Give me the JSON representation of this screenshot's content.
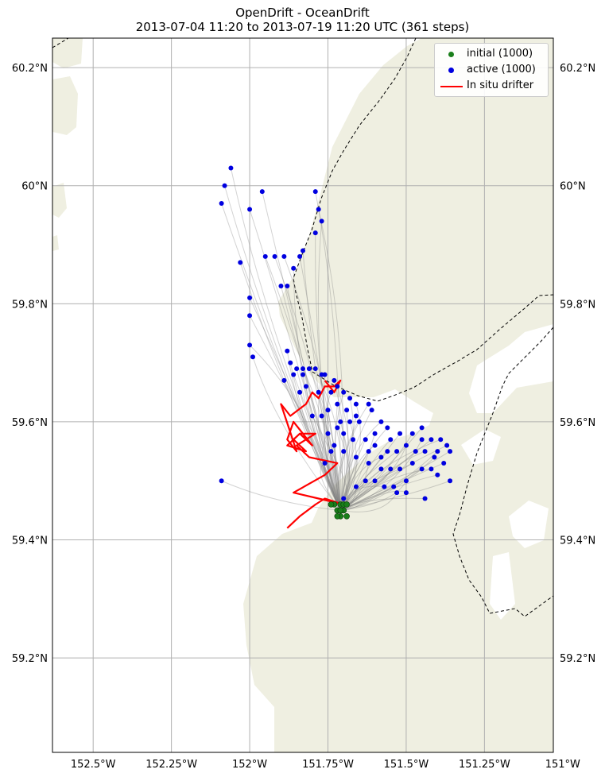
{
  "title_line1": "OpenDrift - OceanDrift",
  "title_line2": "2013-07-04 11:20 to 2013-07-19 11:20 UTC (361 steps)",
  "colors": {
    "land": "#efefe1",
    "grid": "#b0b0b0",
    "trajectory": "#808080",
    "initial": "#1a7f1a",
    "active": "#0000e0",
    "drifter": "#ff0000",
    "border": "#000000"
  },
  "map": {
    "lon_range": [
      -152.63,
      -151.03
    ],
    "lat_range": [
      59.04,
      60.25
    ],
    "lon_ticks": [
      "152.5°W",
      "152.25°W",
      "152°W",
      "151.75°W",
      "151.5°W",
      "151.25°W",
      "151°W"
    ],
    "lat_ticks": [
      "60.2°N",
      "60°N",
      "59.8°N",
      "59.6°N",
      "59.4°N",
      "59.2°N"
    ]
  },
  "legend": {
    "position": "top-right",
    "items": [
      {
        "label": "initial (1000)",
        "symbol": "dot",
        "color": "#1a7f1a"
      },
      {
        "label": "active (1000)",
        "symbol": "dot",
        "color": "#0000e0"
      },
      {
        "label": "In situ drifter",
        "symbol": "line",
        "color": "#ff0000"
      }
    ]
  },
  "chart_data": {
    "type": "scatter",
    "title": "OpenDrift - OceanDrift",
    "subtitle": "2013-07-04 11:20 to 2013-07-19 11:20 UTC (361 steps)",
    "xlim": [
      -152.63,
      -151.03
    ],
    "ylim": [
      59.04,
      60.25
    ],
    "series": [
      {
        "name": "initial (1000)",
        "points": [
          [
            -151.7,
            59.45
          ],
          [
            -151.71,
            59.46
          ],
          [
            -151.69,
            59.44
          ],
          [
            -151.72,
            59.45
          ],
          [
            -151.7,
            59.46
          ],
          [
            -151.71,
            59.44
          ],
          [
            -151.69,
            59.46
          ],
          [
            -151.73,
            59.46
          ],
          [
            -151.7,
            59.45
          ],
          [
            -151.74,
            59.46
          ],
          [
            -151.72,
            59.44
          ],
          [
            -151.71,
            59.45
          ]
        ]
      },
      {
        "name": "active (1000)",
        "points": [
          [
            -152.06,
            60.03
          ],
          [
            -152.08,
            60.0
          ],
          [
            -152.09,
            59.97
          ],
          [
            -151.96,
            59.99
          ],
          [
            -152.0,
            59.96
          ],
          [
            -151.79,
            59.99
          ],
          [
            -151.78,
            59.96
          ],
          [
            -151.77,
            59.94
          ],
          [
            -151.79,
            59.92
          ],
          [
            -151.83,
            59.89
          ],
          [
            -151.84,
            59.88
          ],
          [
            -151.95,
            59.88
          ],
          [
            -151.92,
            59.88
          ],
          [
            -151.89,
            59.88
          ],
          [
            -151.86,
            59.86
          ],
          [
            -152.03,
            59.87
          ],
          [
            -151.88,
            59.83
          ],
          [
            -151.9,
            59.83
          ],
          [
            -152.0,
            59.81
          ],
          [
            -152.0,
            59.78
          ],
          [
            -152.0,
            59.73
          ],
          [
            -151.99,
            59.71
          ],
          [
            -151.88,
            59.72
          ],
          [
            -151.87,
            59.7
          ],
          [
            -151.85,
            59.69
          ],
          [
            -151.83,
            59.69
          ],
          [
            -151.81,
            59.69
          ],
          [
            -151.79,
            59.69
          ],
          [
            -151.77,
            59.68
          ],
          [
            -151.76,
            59.68
          ],
          [
            -151.83,
            59.68
          ],
          [
            -151.86,
            59.68
          ],
          [
            -151.89,
            59.67
          ],
          [
            -151.73,
            59.67
          ],
          [
            -151.72,
            59.66
          ],
          [
            -151.74,
            59.65
          ],
          [
            -151.7,
            59.65
          ],
          [
            -151.82,
            59.66
          ],
          [
            -151.84,
            59.65
          ],
          [
            -151.78,
            59.65
          ],
          [
            -151.68,
            59.64
          ],
          [
            -151.66,
            59.63
          ],
          [
            -151.62,
            59.63
          ],
          [
            -151.61,
            59.62
          ],
          [
            -151.72,
            59.63
          ],
          [
            -151.75,
            59.62
          ],
          [
            -151.77,
            59.61
          ],
          [
            -151.8,
            59.61
          ],
          [
            -151.68,
            59.6
          ],
          [
            -151.65,
            59.6
          ],
          [
            -151.58,
            59.6
          ],
          [
            -151.56,
            59.59
          ],
          [
            -151.52,
            59.58
          ],
          [
            -151.48,
            59.58
          ],
          [
            -151.45,
            59.57
          ],
          [
            -151.42,
            59.57
          ],
          [
            -151.39,
            59.57
          ],
          [
            -151.37,
            59.56
          ],
          [
            -151.36,
            59.55
          ],
          [
            -151.4,
            59.55
          ],
          [
            -151.44,
            59.55
          ],
          [
            -151.47,
            59.55
          ],
          [
            -151.5,
            59.56
          ],
          [
            -151.53,
            59.55
          ],
          [
            -151.56,
            59.55
          ],
          [
            -151.6,
            59.56
          ],
          [
            -151.63,
            59.57
          ],
          [
            -151.67,
            59.57
          ],
          [
            -151.7,
            59.58
          ],
          [
            -151.72,
            59.59
          ],
          [
            -151.75,
            59.58
          ],
          [
            -151.73,
            59.56
          ],
          [
            -151.7,
            59.55
          ],
          [
            -151.66,
            59.54
          ],
          [
            -151.62,
            59.53
          ],
          [
            -151.58,
            59.52
          ],
          [
            -151.55,
            59.52
          ],
          [
            -151.52,
            59.52
          ],
          [
            -151.48,
            59.53
          ],
          [
            -151.45,
            59.52
          ],
          [
            -151.42,
            59.52
          ],
          [
            -151.4,
            59.51
          ],
          [
            -151.36,
            59.5
          ],
          [
            -151.5,
            59.5
          ],
          [
            -151.54,
            59.49
          ],
          [
            -151.57,
            59.49
          ],
          [
            -151.6,
            59.5
          ],
          [
            -151.63,
            59.5
          ],
          [
            -151.66,
            59.49
          ],
          [
            -151.53,
            59.48
          ],
          [
            -151.5,
            59.48
          ],
          [
            -151.44,
            59.47
          ],
          [
            -151.7,
            59.47
          ],
          [
            -152.09,
            59.5
          ],
          [
            -151.6,
            59.58
          ],
          [
            -151.55,
            59.57
          ],
          [
            -151.45,
            59.59
          ],
          [
            -151.41,
            59.54
          ],
          [
            -151.38,
            59.53
          ],
          [
            -151.62,
            59.55
          ],
          [
            -151.58,
            59.54
          ],
          [
            -151.66,
            59.61
          ],
          [
            -151.69,
            59.62
          ],
          [
            -151.71,
            59.6
          ],
          [
            -151.74,
            59.55
          ],
          [
            -151.76,
            59.53
          ]
        ]
      },
      {
        "name": "In situ drifter",
        "points": [
          [
            -151.88,
            59.42
          ],
          [
            -151.84,
            59.44
          ],
          [
            -151.79,
            59.46
          ],
          [
            -151.76,
            59.47
          ],
          [
            -151.7,
            59.46
          ],
          [
            -151.78,
            59.47
          ],
          [
            -151.86,
            59.48
          ],
          [
            -151.76,
            59.51
          ],
          [
            -151.72,
            59.53
          ],
          [
            -151.81,
            59.54
          ],
          [
            -151.85,
            59.56
          ],
          [
            -151.79,
            59.58
          ],
          [
            -151.84,
            59.58
          ],
          [
            -151.86,
            59.57
          ],
          [
            -151.82,
            59.55
          ],
          [
            -151.88,
            59.56
          ],
          [
            -151.84,
            59.58
          ],
          [
            -151.8,
            59.56
          ],
          [
            -151.86,
            59.6
          ],
          [
            -151.88,
            59.57
          ],
          [
            -151.85,
            59.55
          ],
          [
            -151.9,
            59.63
          ],
          [
            -151.87,
            59.61
          ],
          [
            -151.82,
            59.63
          ],
          [
            -151.8,
            59.65
          ],
          [
            -151.78,
            59.64
          ],
          [
            -151.76,
            59.66
          ],
          [
            -151.73,
            59.66
          ],
          [
            -151.71,
            59.67
          ],
          [
            -151.73,
            59.65
          ],
          [
            -151.76,
            59.67
          ]
        ]
      }
    ]
  }
}
